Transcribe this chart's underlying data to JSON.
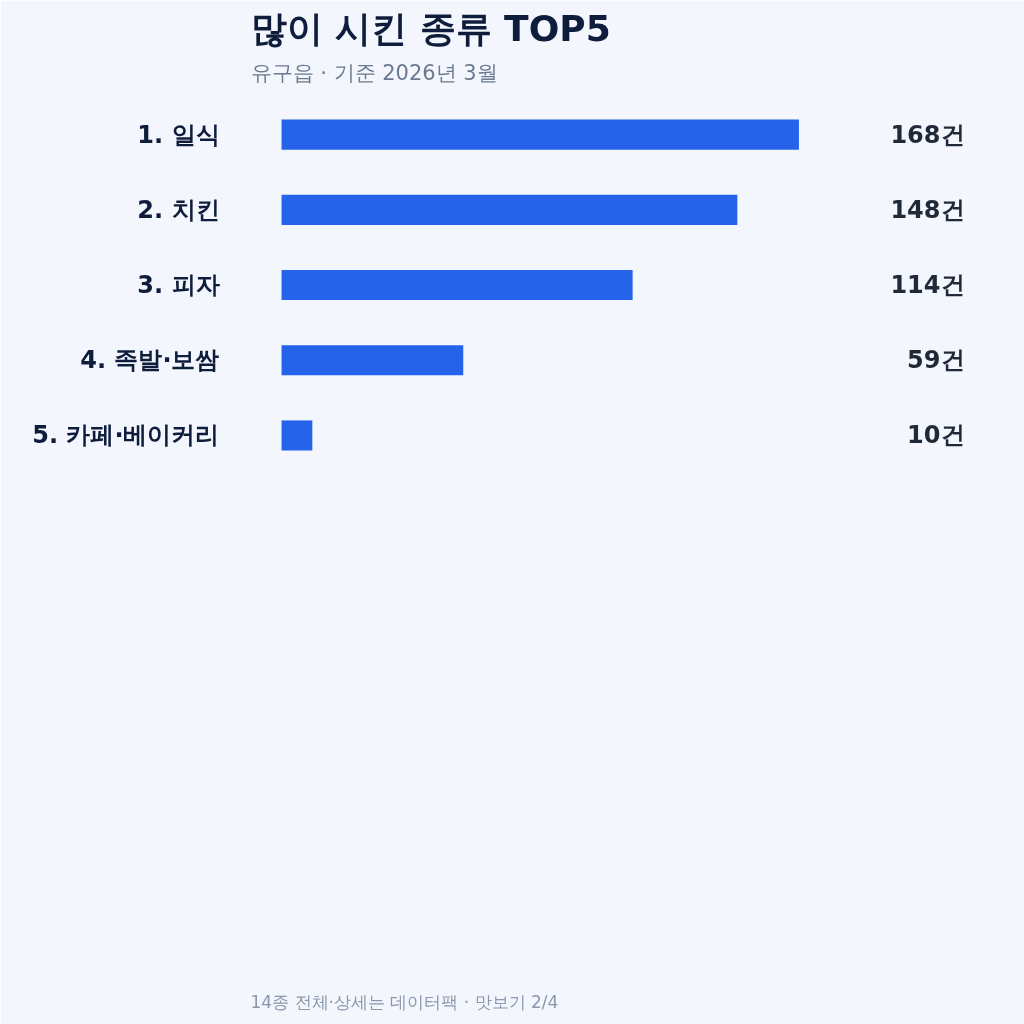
{
  "chart_data": {
    "type": "bar",
    "orientation": "horizontal",
    "title": "많이 시킨 종류 TOP5",
    "subtitle": "유구읍 · 기준 2026년 3월",
    "categories": [
      "1. 일식",
      "2. 치킨",
      "3. 피자",
      "4. 족발·보쌈",
      "5. 카페·베이커리"
    ],
    "values": [
      168,
      148,
      114,
      59,
      10
    ],
    "color": "#2563eb",
    "value_labels": [
      "168건",
      "148건",
      "114건",
      "59건",
      "10건"
    ],
    "annotations": [
      "14종 전체·상세는 데이터팩 · 맛보기 2/4"
    ],
    "grid": false
  }
}
